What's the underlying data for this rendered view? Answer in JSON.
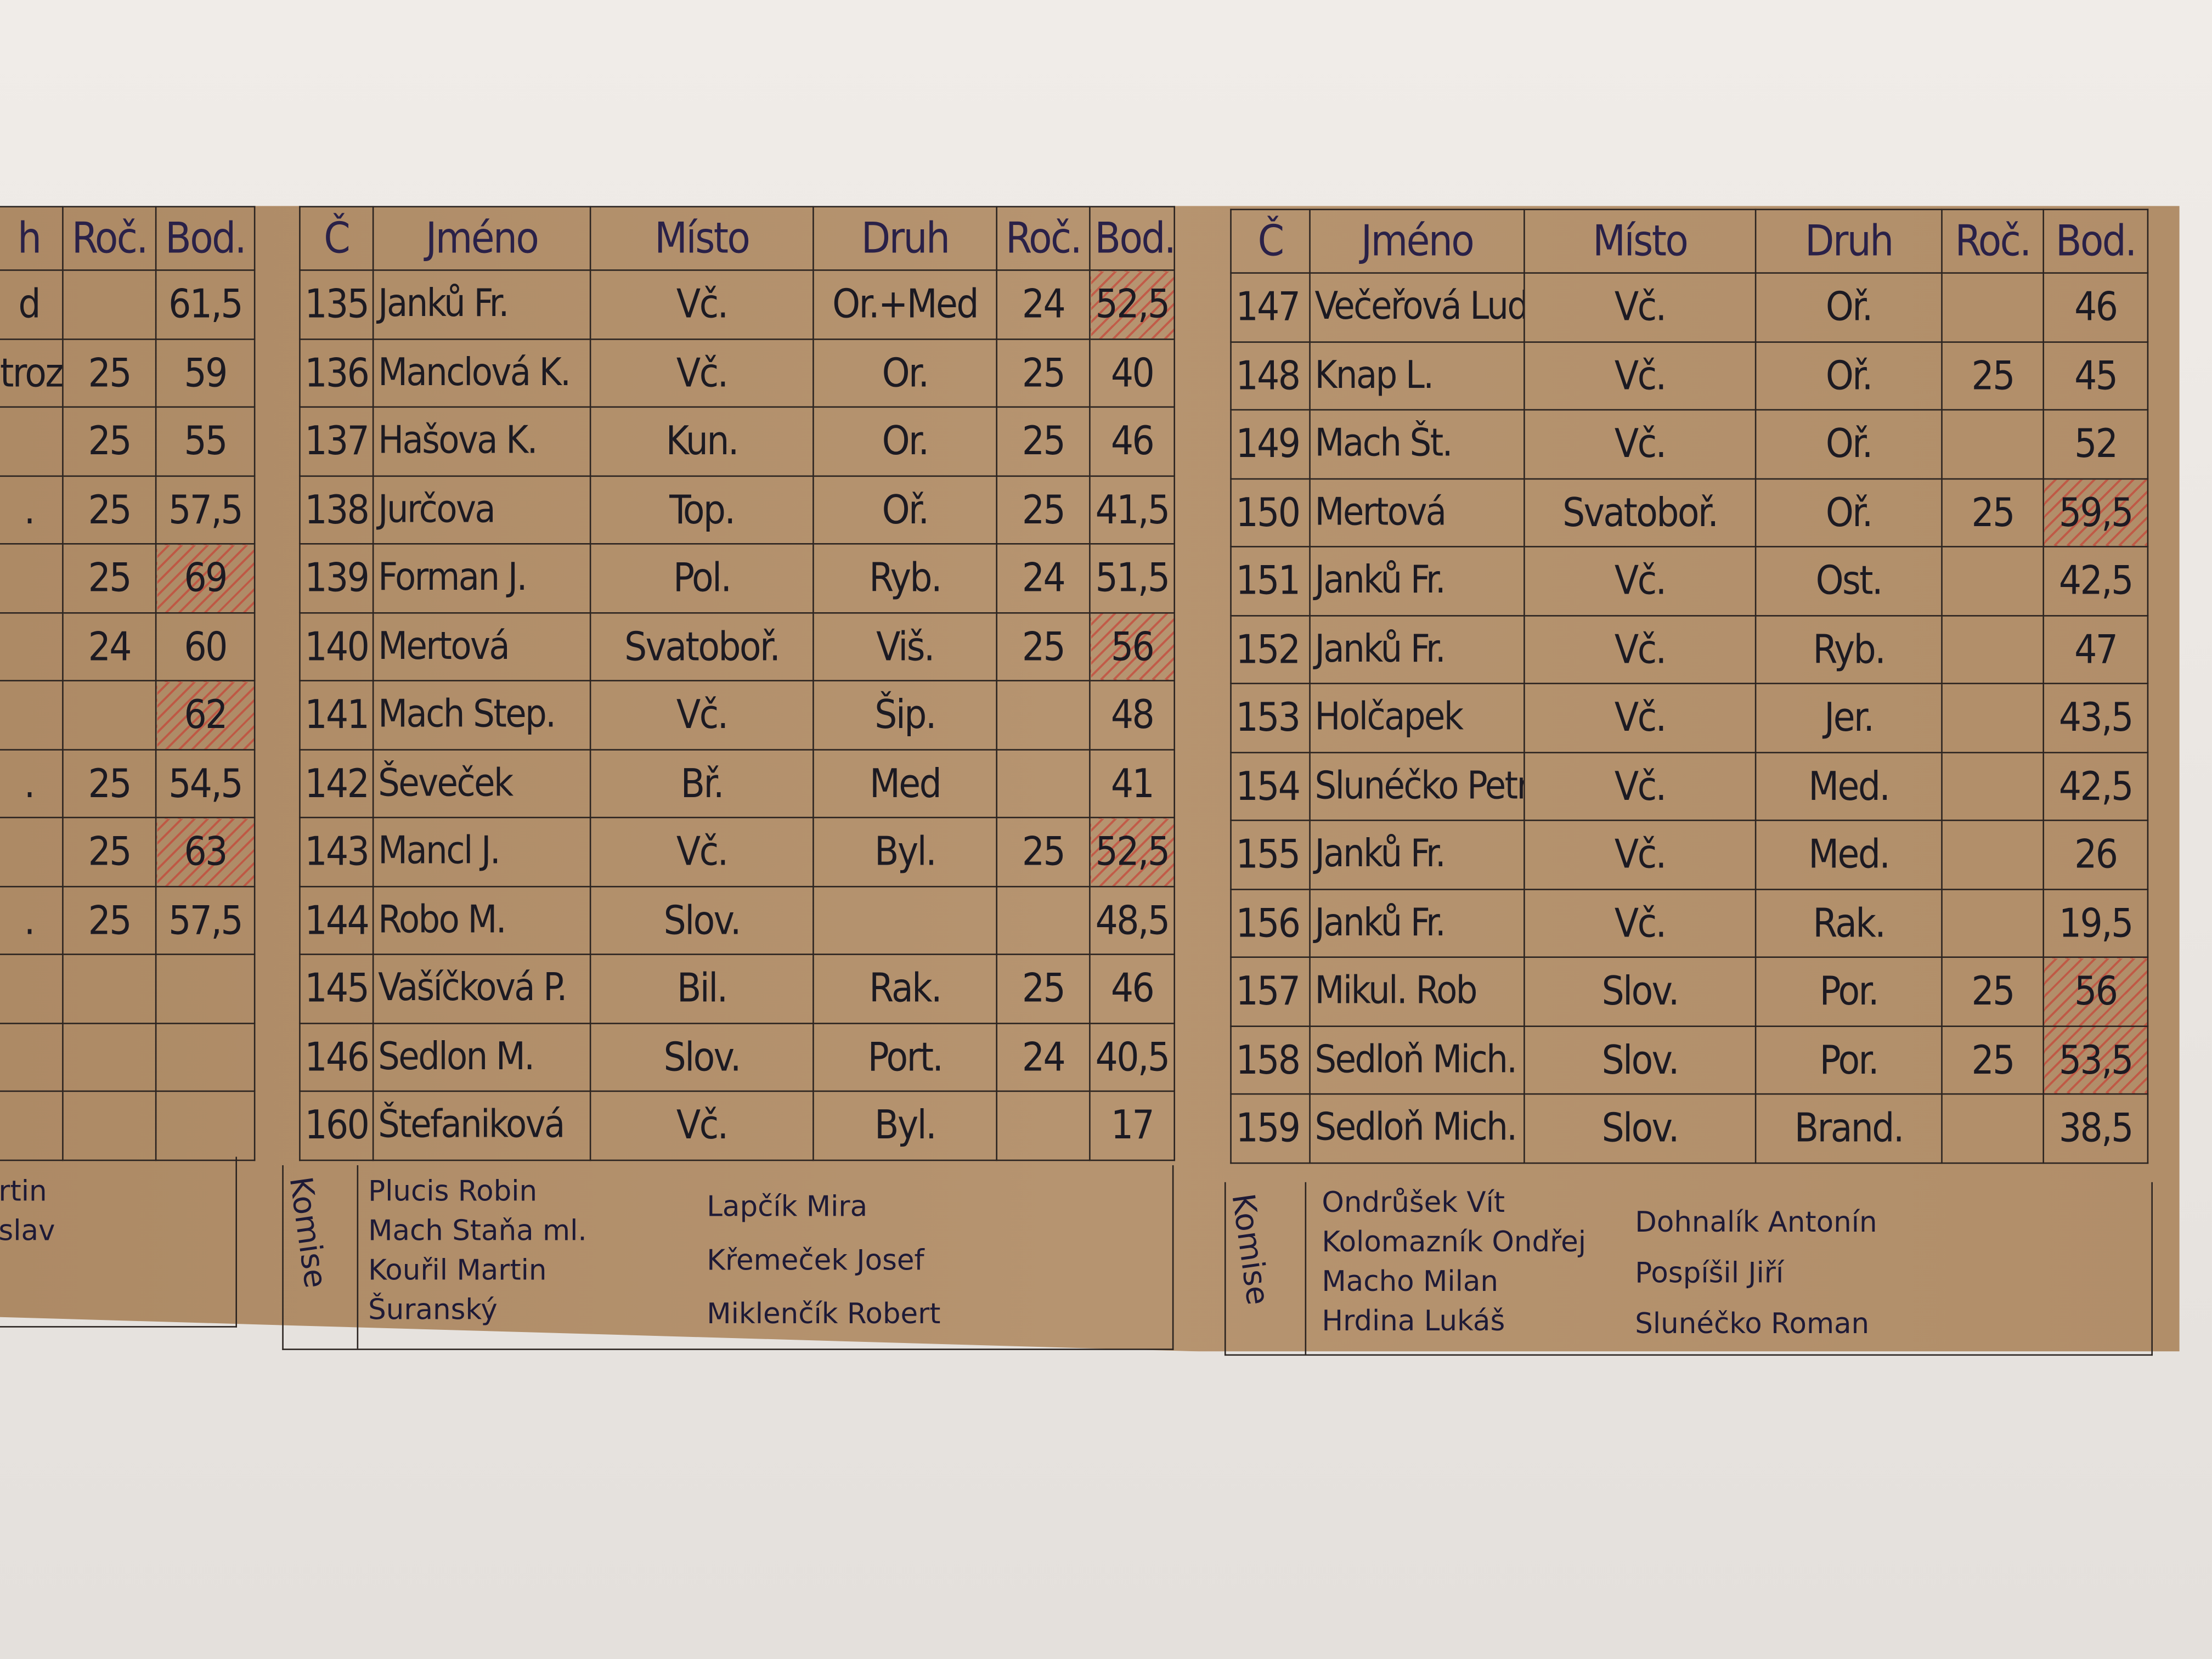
{
  "left_table": {
    "headers": [
      "h",
      "Roč.",
      "Bod."
    ],
    "rows": [
      [
        "d",
        "",
        "61,5"
      ],
      [
        "troz",
        "25",
        "59"
      ],
      [
        "",
        "25",
        "55"
      ],
      [
        ".",
        "25",
        "57,5"
      ],
      [
        "",
        "25",
        "69"
      ],
      [
        "",
        "24",
        "60"
      ],
      [
        "",
        "",
        "62"
      ],
      [
        ".",
        "25",
        "54,5"
      ],
      [
        "",
        "25",
        "63"
      ],
      [
        ".",
        "25",
        "57,5"
      ],
      [
        "",
        "",
        ""
      ],
      [
        "",
        "",
        ""
      ],
      [
        "",
        "",
        ""
      ]
    ],
    "highlighted": [
      "69",
      "62",
      "63"
    ],
    "commission": [
      "rtin",
      "slav"
    ]
  },
  "middle_table": {
    "headers": [
      "Č",
      "Jméno",
      "Místo",
      "Druh",
      "Roč.",
      "Bod."
    ],
    "rows": [
      [
        "135",
        "Janků Fr.",
        "Vč.",
        "Or.+Med",
        "24",
        "52,5"
      ],
      [
        "136",
        "Manclová K.",
        "Vč.",
        "Or.",
        "25",
        "40"
      ],
      [
        "137",
        "Hašova K.",
        "Kun.",
        "Or.",
        "25",
        "46"
      ],
      [
        "138",
        "Jurčova",
        "Top.",
        "Oř.",
        "25",
        "41,5"
      ],
      [
        "139",
        "Forman J.",
        "Pol.",
        "Ryb.",
        "24",
        "51,5"
      ],
      [
        "140",
        "Mertová",
        "Svatoboř.",
        "Viš.",
        "25",
        "56"
      ],
      [
        "141",
        "Mach Step.",
        "Vč.",
        "Šip.",
        "",
        "48"
      ],
      [
        "142",
        "Ševeček",
        "Bř.",
        "Med",
        "",
        "41"
      ],
      [
        "143",
        "Mancl J.",
        "Vč.",
        "Byl.",
        "25",
        "52,5"
      ],
      [
        "144",
        "Robo M.",
        "Slov.",
        "",
        "",
        "48,5"
      ],
      [
        "145",
        "Vašíčková P.",
        "Bil.",
        "Rak.",
        "25",
        "46"
      ],
      [
        "146",
        "Sedlon M.",
        "Slov.",
        "Port.",
        "24",
        "40,5"
      ],
      [
        "160",
        "Štefaniková",
        "Vč.",
        "Byl.",
        "",
        "17"
      ]
    ],
    "highlighted_rows": [
      0,
      5,
      8
    ],
    "commission_label": "Komise",
    "commission_col1": [
      "Plucis Robin",
      "Mach Staňa ml.",
      "Kouřil Martin",
      "Šuranský"
    ],
    "commission_col2": [
      "Lapčík Mira",
      "Křemeček Josef",
      "Miklenčík Robert"
    ]
  },
  "right_table": {
    "headers": [
      "Č",
      "Jméno",
      "Místo",
      "Druh",
      "Roč.",
      "Bod."
    ],
    "rows": [
      [
        "147",
        "Večeřová Lud.",
        "Vč.",
        "Oř.",
        "",
        "46"
      ],
      [
        "148",
        "Knap L.",
        "Vč.",
        "Oř.",
        "25",
        "45"
      ],
      [
        "149",
        "Mach Št.",
        "Vč.",
        "Oř.",
        "",
        "52"
      ],
      [
        "150",
        "Mertová",
        "Svatoboř.",
        "Oř.",
        "25",
        "59,5"
      ],
      [
        "151",
        "Janků Fr.",
        "Vč.",
        "Ost.",
        "",
        "42,5"
      ],
      [
        "152",
        "Janků Fr.",
        "Vč.",
        "Ryb.",
        "",
        "47"
      ],
      [
        "153",
        "Holčapek",
        "Vč.",
        "Jer.",
        "",
        "43,5"
      ],
      [
        "154",
        "Slunéčko Petr",
        "Vč.",
        "Med.",
        "",
        "42,5"
      ],
      [
        "155",
        "Janků Fr.",
        "Vč.",
        "Med.",
        "",
        "26"
      ],
      [
        "156",
        "Janků Fr.",
        "Vč.",
        "Rak.",
        "",
        "19,5"
      ],
      [
        "157",
        "Mikul. Rob",
        "Slov.",
        "Por.",
        "25",
        "56"
      ],
      [
        "158",
        "Sedloň Mich.",
        "Slov.",
        "Por.",
        "25",
        "53,5"
      ],
      [
        "159",
        "Sedloň Mich.",
        "Slov.",
        "Brand.",
        "",
        "38,5"
      ]
    ],
    "highlighted_rows": [
      3,
      10,
      11
    ],
    "commission_label": "Komise",
    "commission_col1": [
      "Ondrůšek Vít",
      "Kolomazník Ondřej",
      "Macho Milan",
      "Hrdina Lukáš"
    ],
    "commission_col2": [
      "Dohnalík Antonín",
      "Pospíšil Jiří",
      "Slunéčko Roman"
    ]
  },
  "colors": {
    "paper": "#b28f6a",
    "ink": "#1c1a22",
    "highlight": "#c83c32",
    "wall": "#ebe7e3"
  }
}
